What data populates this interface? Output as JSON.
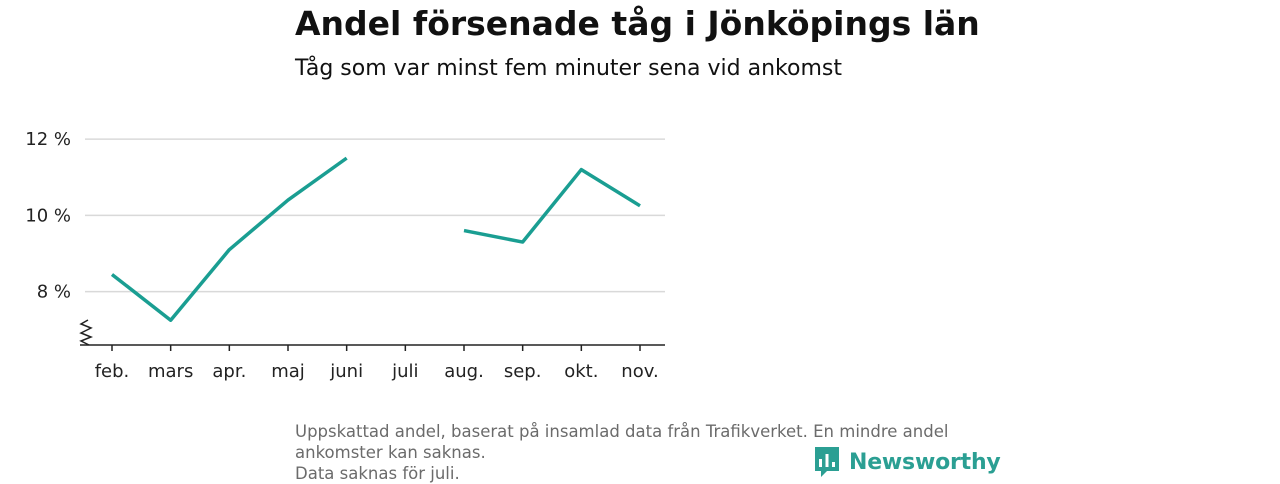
{
  "title": "Andel försenade tåg i Jönköpings län",
  "subtitle": "Tåg som var minst fem minuter sena vid ankomst",
  "chart_data": {
    "type": "line",
    "categories": [
      "feb.",
      "mars",
      "apr.",
      "maj",
      "juni",
      "juli",
      "aug.",
      "sep.",
      "okt.",
      "nov."
    ],
    "series": [
      {
        "values": [
          8.45,
          7.25,
          9.1,
          10.4,
          11.5,
          null,
          9.6,
          9.3,
          11.2,
          10.25
        ]
      }
    ],
    "yticks": [
      8,
      10,
      12
    ],
    "ytick_labels": [
      "8 %",
      "10 %",
      "12 %"
    ],
    "ylim": [
      6.6,
      12.5
    ],
    "y_axis_break": true,
    "grid": true,
    "color": "#1a9e92"
  },
  "footer": {
    "line1": "Uppskattad andel, baserat på insamlad data från Trafikverket. En mindre andel",
    "line2": "ankomster kan saknas.",
    "line3": "Data saknas för juli."
  },
  "logo": {
    "text": "Newsworthy",
    "icon": "newsworthy-bar-chart-icon",
    "color": "#2b9f93"
  }
}
